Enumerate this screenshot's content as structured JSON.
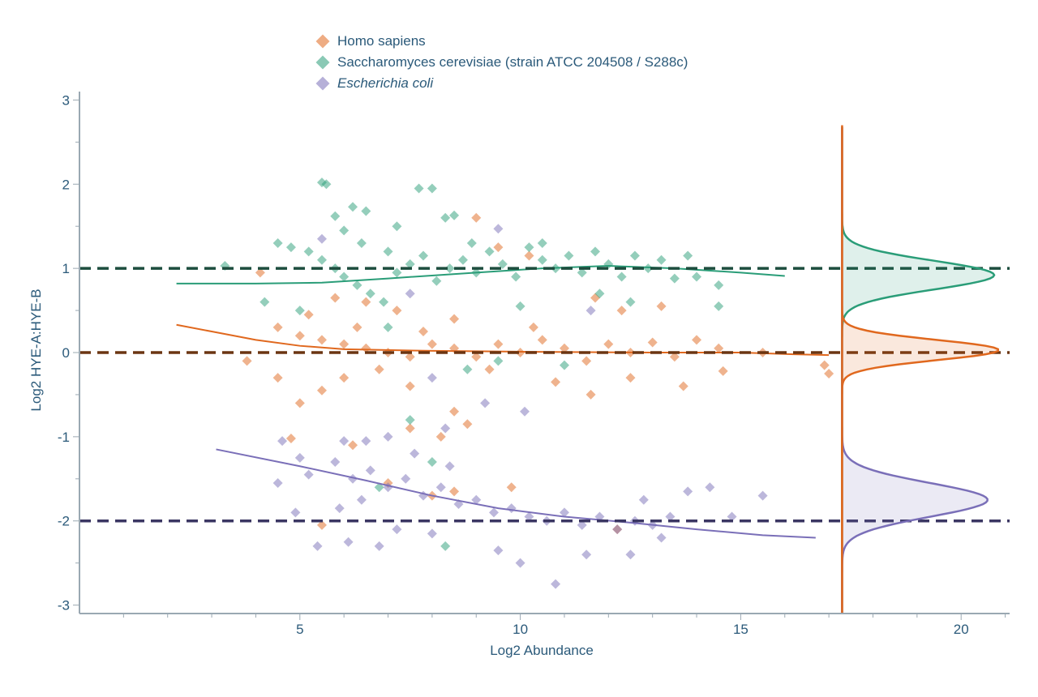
{
  "chart_data": {
    "type": "scatter",
    "xlabel": "Log2 Abundance",
    "ylabel": "Log2 HYE-A:HYE-B",
    "xlim": [
      0,
      21.1
    ],
    "ylim": [
      -3.1,
      3.1
    ],
    "xticks": [
      5,
      10,
      15,
      20
    ],
    "yticks": [
      3,
      2,
      1,
      0,
      -1,
      -2,
      -3
    ],
    "grid": false,
    "legend_placement": "top",
    "reference_lines": [
      {
        "y": 1,
        "color": "#1d4d3e"
      },
      {
        "y": 0,
        "color": "#6b3512"
      },
      {
        "y": -2,
        "color": "#3b3763"
      }
    ],
    "series": [
      {
        "name": "Homo sapiens",
        "italic": false,
        "color": "#e0681e",
        "points": [
          [
            9.0,
            1.6
          ],
          [
            9.5,
            1.25
          ],
          [
            10.2,
            1.15
          ],
          [
            4.1,
            0.95
          ],
          [
            5.8,
            0.65
          ],
          [
            6.5,
            0.6
          ],
          [
            7.2,
            0.5
          ],
          [
            8.5,
            0.4
          ],
          [
            11.7,
            0.65
          ],
          [
            12.3,
            0.5
          ],
          [
            13.2,
            0.55
          ],
          [
            4.5,
            0.3
          ],
          [
            5.0,
            0.2
          ],
          [
            5.5,
            0.15
          ],
          [
            6.0,
            0.1
          ],
          [
            6.5,
            0.05
          ],
          [
            7.0,
            0.0
          ],
          [
            7.5,
            -0.05
          ],
          [
            8.0,
            0.1
          ],
          [
            8.5,
            0.05
          ],
          [
            9.0,
            -0.05
          ],
          [
            9.5,
            0.1
          ],
          [
            10.0,
            0.0
          ],
          [
            10.5,
            0.15
          ],
          [
            11.0,
            0.05
          ],
          [
            11.5,
            -0.1
          ],
          [
            12.0,
            0.1
          ],
          [
            12.5,
            0.0
          ],
          [
            13.0,
            0.12
          ],
          [
            13.5,
            -0.05
          ],
          [
            14.0,
            0.15
          ],
          [
            14.5,
            0.05
          ],
          [
            15.5,
            0.0
          ],
          [
            16.9,
            -0.15
          ],
          [
            17.0,
            -0.25
          ],
          [
            3.8,
            -0.1
          ],
          [
            4.5,
            -0.3
          ],
          [
            5.0,
            -0.6
          ],
          [
            5.5,
            -0.45
          ],
          [
            6.0,
            -0.3
          ],
          [
            6.8,
            -0.2
          ],
          [
            7.5,
            -0.4
          ],
          [
            8.5,
            -0.7
          ],
          [
            9.3,
            -0.2
          ],
          [
            10.8,
            -0.35
          ],
          [
            11.6,
            -0.5
          ],
          [
            12.5,
            -0.3
          ],
          [
            13.7,
            -0.4
          ],
          [
            14.6,
            -0.22
          ],
          [
            4.8,
            -1.02
          ],
          [
            6.2,
            -1.1
          ],
          [
            8.8,
            -0.85
          ],
          [
            8.2,
            -1.0
          ],
          [
            7.0,
            -1.55
          ],
          [
            8.5,
            -1.65
          ],
          [
            9.8,
            -1.6
          ],
          [
            12.2,
            -2.1
          ],
          [
            8.0,
            -1.7
          ],
          [
            5.5,
            -2.05
          ],
          [
            7.5,
            -0.9
          ],
          [
            6.3,
            0.3
          ],
          [
            7.8,
            0.25
          ],
          [
            10.3,
            0.3
          ],
          [
            5.2,
            0.45
          ]
        ],
        "trend": [
          [
            2.2,
            0.33
          ],
          [
            3.0,
            0.25
          ],
          [
            4.0,
            0.15
          ],
          [
            5.0,
            0.08
          ],
          [
            6.0,
            0.04
          ],
          [
            8.0,
            0.02
          ],
          [
            10.0,
            0.01
          ],
          [
            13.0,
            0.0
          ],
          [
            15.0,
            0.0
          ],
          [
            16.2,
            -0.02
          ],
          [
            17.0,
            -0.03
          ]
        ],
        "density": {
          "center": 0.03,
          "spread": 0.12,
          "peak_x": 20.85
        }
      },
      {
        "name": "Saccharomyces cerevisiae (strain ATCC 204508 / S288c)",
        "italic": false,
        "color": "#2a9d78",
        "points": [
          [
            5.5,
            2.02
          ],
          [
            5.6,
            2.0
          ],
          [
            7.7,
            1.95
          ],
          [
            8.0,
            1.95
          ],
          [
            6.2,
            1.73
          ],
          [
            6.5,
            1.68
          ],
          [
            8.5,
            1.63
          ],
          [
            8.3,
            1.6
          ],
          [
            5.8,
            1.62
          ],
          [
            7.2,
            1.5
          ],
          [
            6.0,
            1.45
          ],
          [
            4.5,
            1.3
          ],
          [
            4.8,
            1.25
          ],
          [
            5.2,
            1.2
          ],
          [
            5.5,
            1.1
          ],
          [
            5.8,
            1.0
          ],
          [
            6.0,
            0.9
          ],
          [
            6.3,
            0.8
          ],
          [
            6.6,
            0.7
          ],
          [
            6.9,
            0.6
          ],
          [
            7.2,
            0.95
          ],
          [
            7.5,
            1.05
          ],
          [
            7.8,
            1.15
          ],
          [
            8.1,
            0.85
          ],
          [
            8.4,
            1.0
          ],
          [
            8.7,
            1.1
          ],
          [
            9.0,
            0.95
          ],
          [
            9.3,
            1.2
          ],
          [
            9.6,
            1.05
          ],
          [
            9.9,
            0.9
          ],
          [
            10.2,
            1.25
          ],
          [
            10.5,
            1.1
          ],
          [
            10.8,
            1.0
          ],
          [
            11.1,
            1.15
          ],
          [
            11.4,
            0.95
          ],
          [
            11.7,
            1.2
          ],
          [
            12.0,
            1.05
          ],
          [
            12.3,
            0.9
          ],
          [
            12.6,
            1.15
          ],
          [
            12.9,
            1.0
          ],
          [
            13.2,
            1.1
          ],
          [
            13.5,
            0.88
          ],
          [
            13.8,
            1.15
          ],
          [
            14.0,
            0.9
          ],
          [
            14.5,
            0.8
          ],
          [
            14.5,
            0.55
          ],
          [
            3.3,
            1.03
          ],
          [
            4.2,
            0.6
          ],
          [
            5.0,
            0.5
          ],
          [
            7.0,
            0.3
          ],
          [
            8.8,
            -0.2
          ],
          [
            9.5,
            -0.1
          ],
          [
            11.0,
            -0.15
          ],
          [
            12.5,
            0.6
          ],
          [
            7.5,
            -0.8
          ],
          [
            6.8,
            -1.6
          ],
          [
            8.3,
            -2.3
          ],
          [
            8.0,
            -1.3
          ],
          [
            10.0,
            0.55
          ],
          [
            11.8,
            0.7
          ],
          [
            6.4,
            1.3
          ],
          [
            7.0,
            1.2
          ],
          [
            8.9,
            1.3
          ],
          [
            10.5,
            1.3
          ]
        ],
        "trend": [
          [
            2.2,
            0.82
          ],
          [
            4.0,
            0.82
          ],
          [
            5.5,
            0.83
          ],
          [
            7.0,
            0.88
          ],
          [
            9.0,
            0.95
          ],
          [
            10.5,
            1.0
          ],
          [
            12.0,
            1.03
          ],
          [
            13.5,
            1.0
          ],
          [
            15.0,
            0.95
          ],
          [
            16.0,
            0.91
          ]
        ],
        "density": {
          "center": 0.92,
          "spread": 0.17,
          "peak_x": 20.75
        }
      },
      {
        "name": "Escherichia coli",
        "italic": true,
        "color": "#7a6fb8",
        "points": [
          [
            9.5,
            1.47
          ],
          [
            5.5,
            1.35
          ],
          [
            7.5,
            0.7
          ],
          [
            11.6,
            0.5
          ],
          [
            8.0,
            -0.3
          ],
          [
            9.2,
            -0.6
          ],
          [
            10.1,
            -0.7
          ],
          [
            8.3,
            -0.9
          ],
          [
            7.0,
            -1.0
          ],
          [
            6.5,
            -1.05
          ],
          [
            4.6,
            -1.05
          ],
          [
            5.0,
            -1.25
          ],
          [
            4.5,
            -1.55
          ],
          [
            5.2,
            -1.45
          ],
          [
            5.8,
            -1.3
          ],
          [
            6.2,
            -1.5
          ],
          [
            6.6,
            -1.4
          ],
          [
            7.0,
            -1.6
          ],
          [
            7.4,
            -1.5
          ],
          [
            7.8,
            -1.7
          ],
          [
            8.2,
            -1.6
          ],
          [
            8.6,
            -1.8
          ],
          [
            9.0,
            -1.75
          ],
          [
            9.4,
            -1.9
          ],
          [
            9.8,
            -1.85
          ],
          [
            10.2,
            -1.95
          ],
          [
            10.6,
            -2.0
          ],
          [
            11.0,
            -1.9
          ],
          [
            11.4,
            -2.05
          ],
          [
            11.8,
            -1.95
          ],
          [
            12.2,
            -2.1
          ],
          [
            12.6,
            -2.0
          ],
          [
            13.0,
            -2.05
          ],
          [
            13.4,
            -1.95
          ],
          [
            13.8,
            -1.65
          ],
          [
            14.3,
            -1.6
          ],
          [
            14.8,
            -1.95
          ],
          [
            15.5,
            -1.7
          ],
          [
            6.8,
            -2.3
          ],
          [
            6.1,
            -2.25
          ],
          [
            5.4,
            -2.3
          ],
          [
            9.5,
            -2.35
          ],
          [
            10.0,
            -2.5
          ],
          [
            10.8,
            -2.75
          ],
          [
            11.5,
            -2.4
          ],
          [
            12.5,
            -2.4
          ],
          [
            5.9,
            -1.85
          ],
          [
            7.2,
            -2.1
          ],
          [
            8.0,
            -2.15
          ],
          [
            6.4,
            -1.75
          ],
          [
            7.6,
            -1.2
          ],
          [
            8.4,
            -1.35
          ],
          [
            12.8,
            -1.75
          ],
          [
            13.2,
            -2.2
          ],
          [
            4.9,
            -1.9
          ],
          [
            6.0,
            -1.05
          ]
        ],
        "trend": [
          [
            3.1,
            -1.15
          ],
          [
            5.0,
            -1.35
          ],
          [
            6.5,
            -1.52
          ],
          [
            8.0,
            -1.7
          ],
          [
            9.5,
            -1.85
          ],
          [
            11.0,
            -1.95
          ],
          [
            12.5,
            -2.02
          ],
          [
            14.0,
            -2.1
          ],
          [
            15.5,
            -2.17
          ],
          [
            16.7,
            -2.2
          ]
        ],
        "density": {
          "center": -1.75,
          "spread": 0.2,
          "peak_x": 20.6
        }
      }
    ],
    "density_baseline_x": 17.3
  }
}
